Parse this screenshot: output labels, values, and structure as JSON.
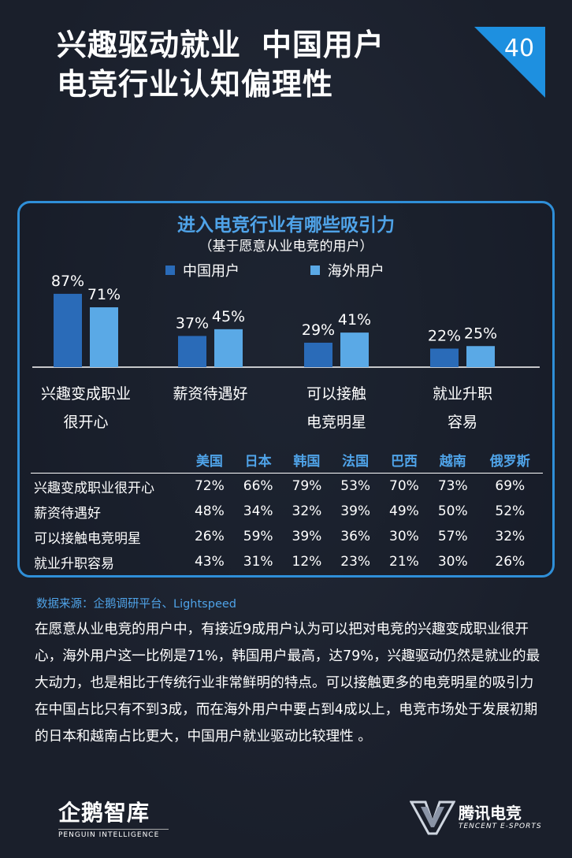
{
  "header": {
    "title_line1_a": "兴趣驱动就业",
    "title_line1_b": "中国用户",
    "title_line2": "电竞行业认知偏理性",
    "page_number": "40",
    "corner_color": "#1e90e0"
  },
  "chart_data": {
    "type": "bar",
    "title": "进入电竞行业有哪些吸引力",
    "subtitle": "（基于愿意从业电竞的用户）",
    "categories": [
      [
        "兴趣变成职业",
        "很开心"
      ],
      [
        "薪资待遇好"
      ],
      [
        "可以接触",
        "电竞明星"
      ],
      [
        "就业升职",
        "容易"
      ]
    ],
    "series": [
      {
        "name": "中国用户",
        "values": [
          87,
          37,
          29,
          22
        ],
        "labels": [
          "87%",
          "37%",
          "29%",
          "22%"
        ],
        "color": "#2a6bb8"
      },
      {
        "name": "海外用户",
        "values": [
          71,
          45,
          41,
          25
        ],
        "labels": [
          "71%",
          "45%",
          "41%",
          "25%"
        ],
        "color": "#5aa9e6"
      }
    ],
    "ylim": [
      0,
      100
    ],
    "legend": "top"
  },
  "table": {
    "columns": [
      "美国",
      "日本",
      "韩国",
      "法国",
      "巴西",
      "越南",
      "俄罗斯"
    ],
    "rows": [
      {
        "label": "兴趣变成职业很开心",
        "values": [
          "72%",
          "66%",
          "79%",
          "53%",
          "70%",
          "73%",
          "69%"
        ]
      },
      {
        "label": "薪资待遇好",
        "values": [
          "48%",
          "34%",
          "32%",
          "39%",
          "49%",
          "50%",
          "52%"
        ]
      },
      {
        "label": "可以接触电竞明星",
        "values": [
          "26%",
          "59%",
          "39%",
          "36%",
          "30%",
          "57%",
          "32%"
        ]
      },
      {
        "label": "就业升职容易",
        "values": [
          "43%",
          "31%",
          "12%",
          "23%",
          "21%",
          "30%",
          "26%"
        ]
      }
    ]
  },
  "source": "数据来源：企鹅调研平台、Lightspeed",
  "body": "在愿意从业电竞的用户中，有接近9成用户认为可以把对电竞的兴趣变成职业很开心，海外用户这一比例是71%，韩国用户最高，达79%，兴趣驱动仍然是就业的最大动力，也是相比于传统行业非常鲜明的特点。可以接触更多的电竞明星的吸引力在中国占比只有不到3成，而在海外用户中要占到4成以上，电竞市场处于发展初期的日本和越南占比更大，中国用户就业驱动比较理性 。",
  "footer": {
    "left_logo_cn": "企鹅智库",
    "left_logo_en": "PENGUIN INTELLIGENCE",
    "right_logo_cn": "腾讯电竞",
    "right_logo_en": "TENCENT E-SPORTS"
  }
}
